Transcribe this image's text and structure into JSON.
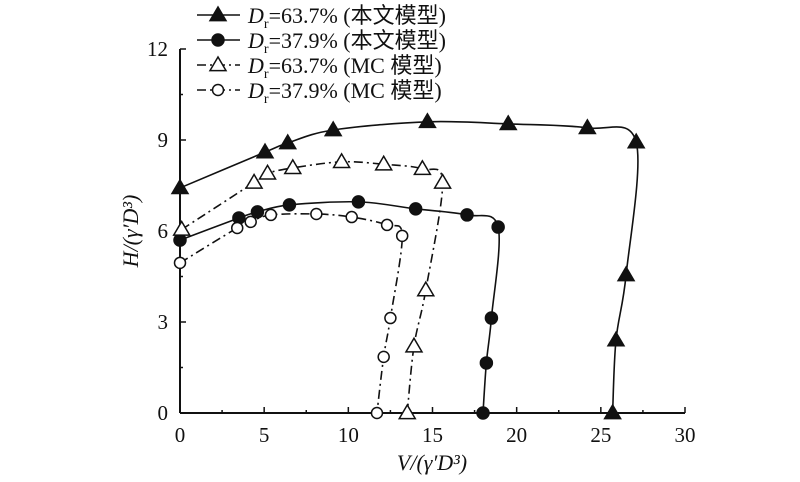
{
  "chart_data": {
    "type": "line",
    "title": "",
    "xlabel": "V/(γ′D³)",
    "ylabel": "H/(γ′D³)",
    "xlim": [
      0,
      30
    ],
    "ylim": [
      0,
      12
    ],
    "xticks": [
      0,
      5,
      10,
      15,
      20,
      25,
      30
    ],
    "yticks": [
      0,
      3,
      6,
      9,
      12
    ],
    "grid": false,
    "legend_position": "top-left",
    "series": [
      {
        "name": "Dr=63.7% (本文模型)",
        "label_main": "D",
        "label_sub": "r",
        "label_rest": "=63.7% (本文模型)",
        "marker": "triangle-filled",
        "line": "solid",
        "points": [
          [
            0,
            7.42
          ],
          [
            5.05,
            8.6
          ],
          [
            6.4,
            8.9
          ],
          [
            9.1,
            9.33
          ],
          [
            14.7,
            9.6
          ],
          [
            19.5,
            9.53
          ],
          [
            24.2,
            9.4
          ],
          [
            27.1,
            8.93
          ],
          [
            26.5,
            4.55
          ],
          [
            25.9,
            2.4
          ],
          [
            25.7,
            0
          ]
        ]
      },
      {
        "name": "Dr=37.9% (本文模型)",
        "label_main": "D",
        "label_sub": "r",
        "label_rest": "=37.9% (本文模型)",
        "marker": "circle-filled",
        "line": "solid",
        "points": [
          [
            0,
            5.7
          ],
          [
            3.5,
            6.43
          ],
          [
            4.6,
            6.63
          ],
          [
            6.5,
            6.86
          ],
          [
            10.6,
            6.96
          ],
          [
            14.0,
            6.73
          ],
          [
            17.05,
            6.53
          ],
          [
            18.9,
            6.13
          ],
          [
            18.5,
            3.13
          ],
          [
            18.2,
            1.65
          ],
          [
            18.0,
            0
          ]
        ]
      },
      {
        "name": "Dr=63.7% (MC 模型)",
        "label_main": "D",
        "label_sub": "r",
        "label_rest": "=63.7% (MC 模型)",
        "marker": "triangle-open",
        "line": "dashdot",
        "points": [
          [
            0.1,
            6.05
          ],
          [
            4.4,
            7.6
          ],
          [
            5.2,
            7.9
          ],
          [
            6.7,
            8.08
          ],
          [
            9.6,
            8.28
          ],
          [
            12.1,
            8.2
          ],
          [
            14.4,
            8.05
          ],
          [
            15.6,
            7.6
          ],
          [
            14.6,
            4.05
          ],
          [
            13.9,
            2.2
          ],
          [
            13.5,
            0
          ]
        ]
      },
      {
        "name": "Dr=37.9% (MC 模型)",
        "label_main": "D",
        "label_sub": "r",
        "label_rest": "=37.9% (MC 模型)",
        "marker": "circle-open",
        "line": "dashdot",
        "points": [
          [
            0,
            4.95
          ],
          [
            3.4,
            6.1
          ],
          [
            4.2,
            6.3
          ],
          [
            5.4,
            6.53
          ],
          [
            8.1,
            6.56
          ],
          [
            10.2,
            6.46
          ],
          [
            12.3,
            6.2
          ],
          [
            13.2,
            5.84
          ],
          [
            12.5,
            3.13
          ],
          [
            12.1,
            1.85
          ],
          [
            11.7,
            0
          ]
        ]
      }
    ]
  }
}
